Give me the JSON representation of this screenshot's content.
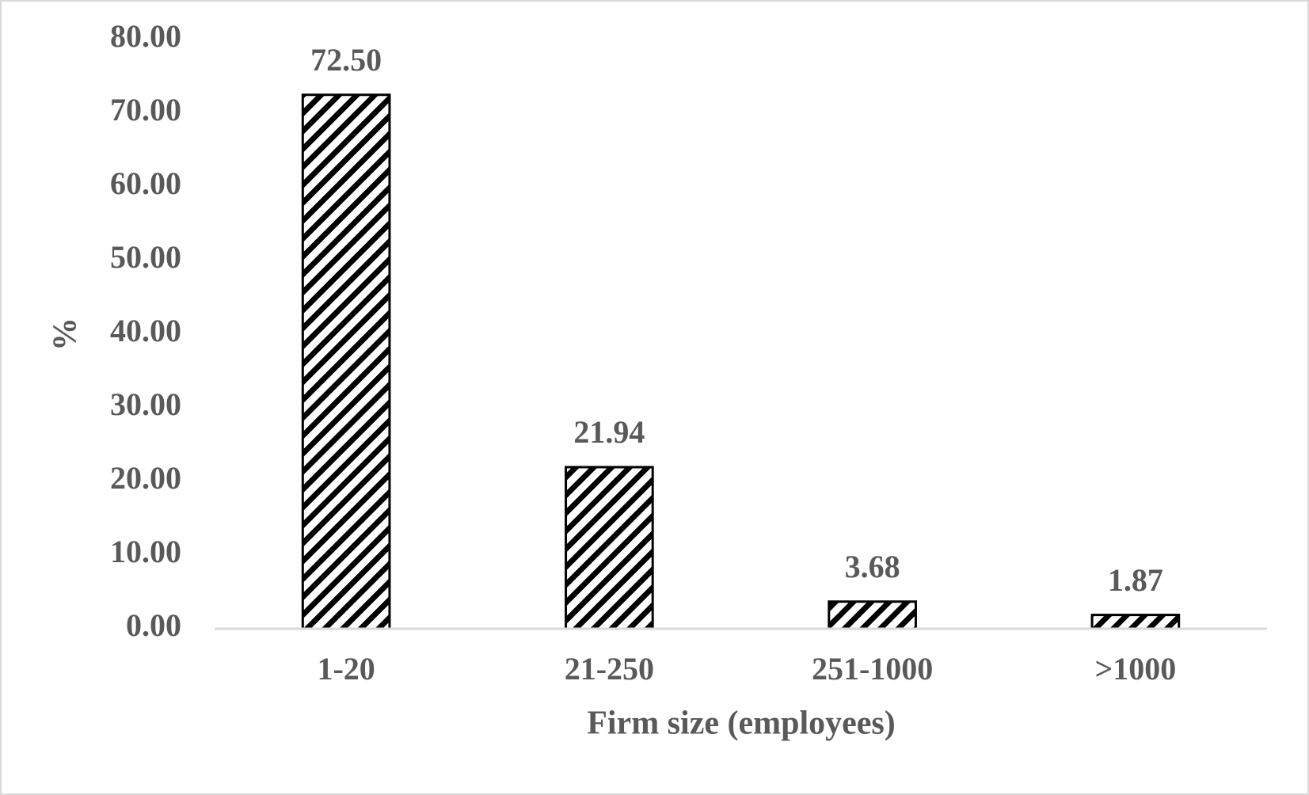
{
  "chart_data": {
    "type": "bar",
    "categories": [
      "1-20",
      "21-250",
      "251-1000",
      ">1000"
    ],
    "values": [
      72.5,
      21.94,
      3.68,
      1.87
    ],
    "value_labels": [
      "72.50",
      "21.94",
      "3.68",
      "1.87"
    ],
    "x_label": "Firm size (employees)",
    "y_label": "%",
    "ylim": [
      0,
      80
    ],
    "yticks": [
      {
        "value": 0,
        "label": "0.00"
      },
      {
        "value": 10,
        "label": "10.00"
      },
      {
        "value": 20,
        "label": "20.00"
      },
      {
        "value": 30,
        "label": "30.00"
      },
      {
        "value": 40,
        "label": "40.00"
      },
      {
        "value": 50,
        "label": "50.00"
      },
      {
        "value": 60,
        "label": "60.00"
      },
      {
        "value": 70,
        "label": "70.00"
      },
      {
        "value": 80,
        "label": "80.00"
      }
    ],
    "grid": false
  }
}
